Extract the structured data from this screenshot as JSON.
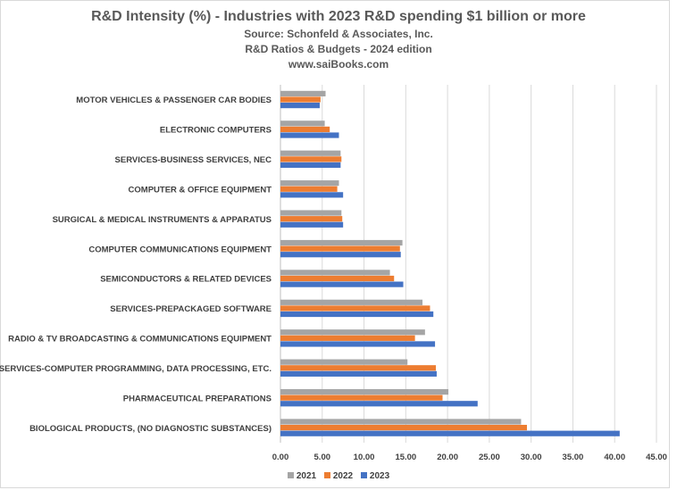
{
  "chart_data": {
    "type": "bar",
    "orientation": "horizontal",
    "title": "R&D Intensity (%) - Industries with 2023 R&D spending $1 billion or more",
    "subtitles": [
      "Source: Schonfeld & Associates, Inc.",
      "R&D Ratios & Budgets - 2024 edition",
      "www.saiBooks.com"
    ],
    "categories": [
      "MOTOR VEHICLES & PASSENGER CAR BODIES",
      "ELECTRONIC COMPUTERS",
      "SERVICES-BUSINESS SERVICES, NEC",
      "COMPUTER & OFFICE EQUIPMENT",
      "SURGICAL & MEDICAL INSTRUMENTS & APPARATUS",
      "COMPUTER COMMUNICATIONS EQUIPMENT",
      "SEMICONDUCTORS & RELATED DEVICES",
      "SERVICES-PREPACKAGED SOFTWARE",
      "RADIO & TV BROADCASTING & COMMUNICATIONS EQUIPMENT",
      "SERVICES-COMPUTER PROGRAMMING, DATA PROCESSING, ETC.",
      "PHARMACEUTICAL PREPARATIONS",
      "BIOLOGICAL PRODUCTS, (NO DIAGNOSTIC SUBSTANCES)"
    ],
    "series": [
      {
        "name": "2021",
        "color": "#a5a5a5",
        "values": [
          5.4,
          5.3,
          7.2,
          7.0,
          7.3,
          14.6,
          13.1,
          17.0,
          17.3,
          15.2,
          20.1,
          28.8
        ]
      },
      {
        "name": "2022",
        "color": "#ed7d31",
        "values": [
          4.8,
          5.9,
          7.3,
          6.8,
          7.4,
          14.3,
          13.6,
          17.9,
          16.1,
          18.6,
          19.4,
          29.5
        ]
      },
      {
        "name": "2023",
        "color": "#4472c4",
        "values": [
          4.7,
          7.0,
          7.2,
          7.5,
          7.5,
          14.4,
          14.7,
          18.3,
          18.5,
          18.7,
          23.6,
          40.6
        ]
      }
    ],
    "xlim": [
      0,
      45
    ],
    "xticks": [
      "0.00",
      "5.00",
      "10.00",
      "15.00",
      "20.00",
      "25.00",
      "30.00",
      "35.00",
      "40.00",
      "45.00"
    ],
    "grid": true,
    "legend_position": "bottom"
  }
}
